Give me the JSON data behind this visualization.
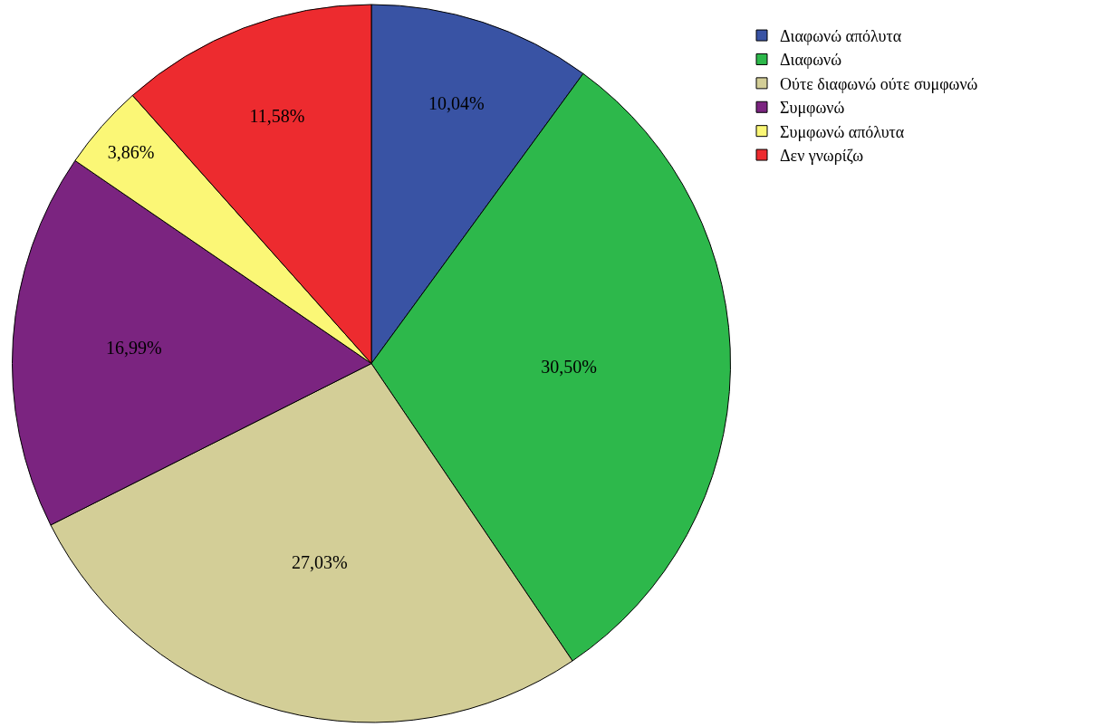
{
  "chart_data": {
    "type": "pie",
    "categories": [
      "Διαφωνώ απόλυτα",
      "Διαφωνώ",
      "Ούτε διαφωνώ ούτε συμφωνώ",
      "Συμφωνώ",
      "Συμφωνώ απόλυτα",
      "Δεν γνωρίζω"
    ],
    "values": [
      10.04,
      30.5,
      27.03,
      16.99,
      3.86,
      11.58
    ],
    "value_labels": [
      "10,04%",
      "30,50%",
      "27,03%",
      "16,99%",
      "3,86%",
      "11,58%"
    ],
    "colors": [
      "#3953a4",
      "#2db84b",
      "#d3ce97",
      "#7b2480",
      "#fbf776",
      "#ed2b2f"
    ],
    "legend": "top right"
  }
}
